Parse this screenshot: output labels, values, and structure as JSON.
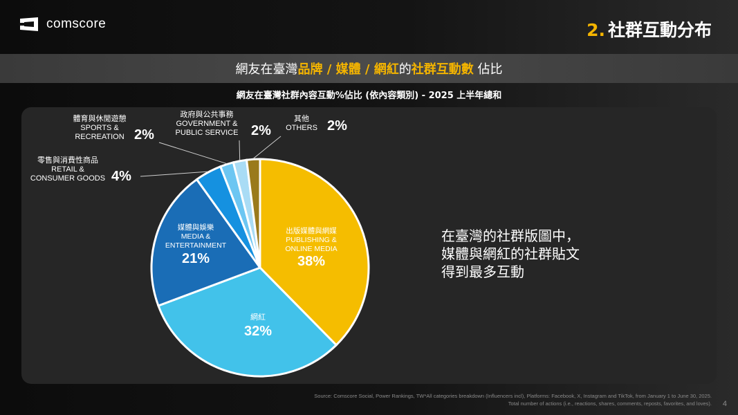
{
  "header": {
    "logo_text": "comscore",
    "section_number": "2.",
    "section_title": "社群互動分布"
  },
  "banner": {
    "prefix": "網友在臺灣",
    "highlight1": "品牌 / 媒體 / 網紅",
    "middle": "的",
    "highlight2": "社群互動數",
    "suffix": " 佔比"
  },
  "chart_data": {
    "type": "pie",
    "title": "網友在臺灣社群內容互動%佔比 (依內容類別) - 2025 上半年總和",
    "slices": [
      {
        "label_zh": "出版媒體與網媒",
        "label_en": "PUBLISHING & ONLINE MEDIA",
        "value": 38,
        "value_label": "38%",
        "color": "#f5bd00"
      },
      {
        "label_zh": "網紅",
        "label_en": "",
        "value": 32,
        "value_label": "32%",
        "color": "#42c2ea"
      },
      {
        "label_zh": "媒體與娛樂",
        "label_en": "MEDIA & ENTERTAINMENT",
        "value": 21,
        "value_label": "21%",
        "color": "#1a6db6"
      },
      {
        "label_zh": "零售與消費性商品",
        "label_en": "RETAIL & CONSUMER GOODS",
        "value": 4,
        "value_label": "4%",
        "color": "#1591e0"
      },
      {
        "label_zh": "體育與休閒遊憩",
        "label_en": "SPORTS & RECREATION",
        "value": 2,
        "value_label": "2%",
        "color": "#6cc6f2"
      },
      {
        "label_zh": "政府與公共事務",
        "label_en": "GOVERNMENT & PUBLIC SERVICE",
        "value": 2,
        "value_label": "2%",
        "color": "#a9dcf5"
      },
      {
        "label_zh": "其他",
        "label_en": "OTHERS",
        "value": 2,
        "value_label": "2%",
        "color": "#9a7a1c"
      }
    ]
  },
  "callouts": {
    "sports": {
      "zh": "體育與休閒遊憩",
      "en1": "SPORTS &",
      "en2": "RECREATION",
      "pct": "2%"
    },
    "government": {
      "zh": "政府與公共事務",
      "en1": "GOVERNMENT &",
      "en2": "PUBLIC SERVICE",
      "pct": "2%"
    },
    "others": {
      "zh": "其他",
      "en1": "OTHERS",
      "pct": "2%"
    },
    "retail": {
      "zh": "零售與消費性商品",
      "en1": "RETAIL &",
      "en2": "CONSUMER GOODS",
      "pct": "4%"
    }
  },
  "inside_labels": {
    "publishing": {
      "zh": "出版媒體與網媒",
      "en1": "PUBLISHING &",
      "en2": "ONLINE MEDIA",
      "pct": "38%"
    },
    "influencer": {
      "zh": "網紅",
      "pct": "32%"
    },
    "media": {
      "zh": "媒體與娛樂",
      "en1": "MEDIA &",
      "en2": "ENTERTAINMENT",
      "pct": "21%"
    }
  },
  "takeaway": {
    "line1": "在臺灣的社群版圖中，",
    "line2": "媒體與網紅的社群貼文",
    "line3": "得到最多互動"
  },
  "footer": {
    "source_line1": "Source: Comscore Social, Power Rankings, TW*All categories breakdown (Influencers incl), Platforms: Facebook, X, Instagram and TikTok, from January 1 to June 30, 2025.",
    "source_line2": "Total number of actions (i.e., reactions, shares, comments, reposts, favorites, and loves).",
    "page_number": "4"
  }
}
